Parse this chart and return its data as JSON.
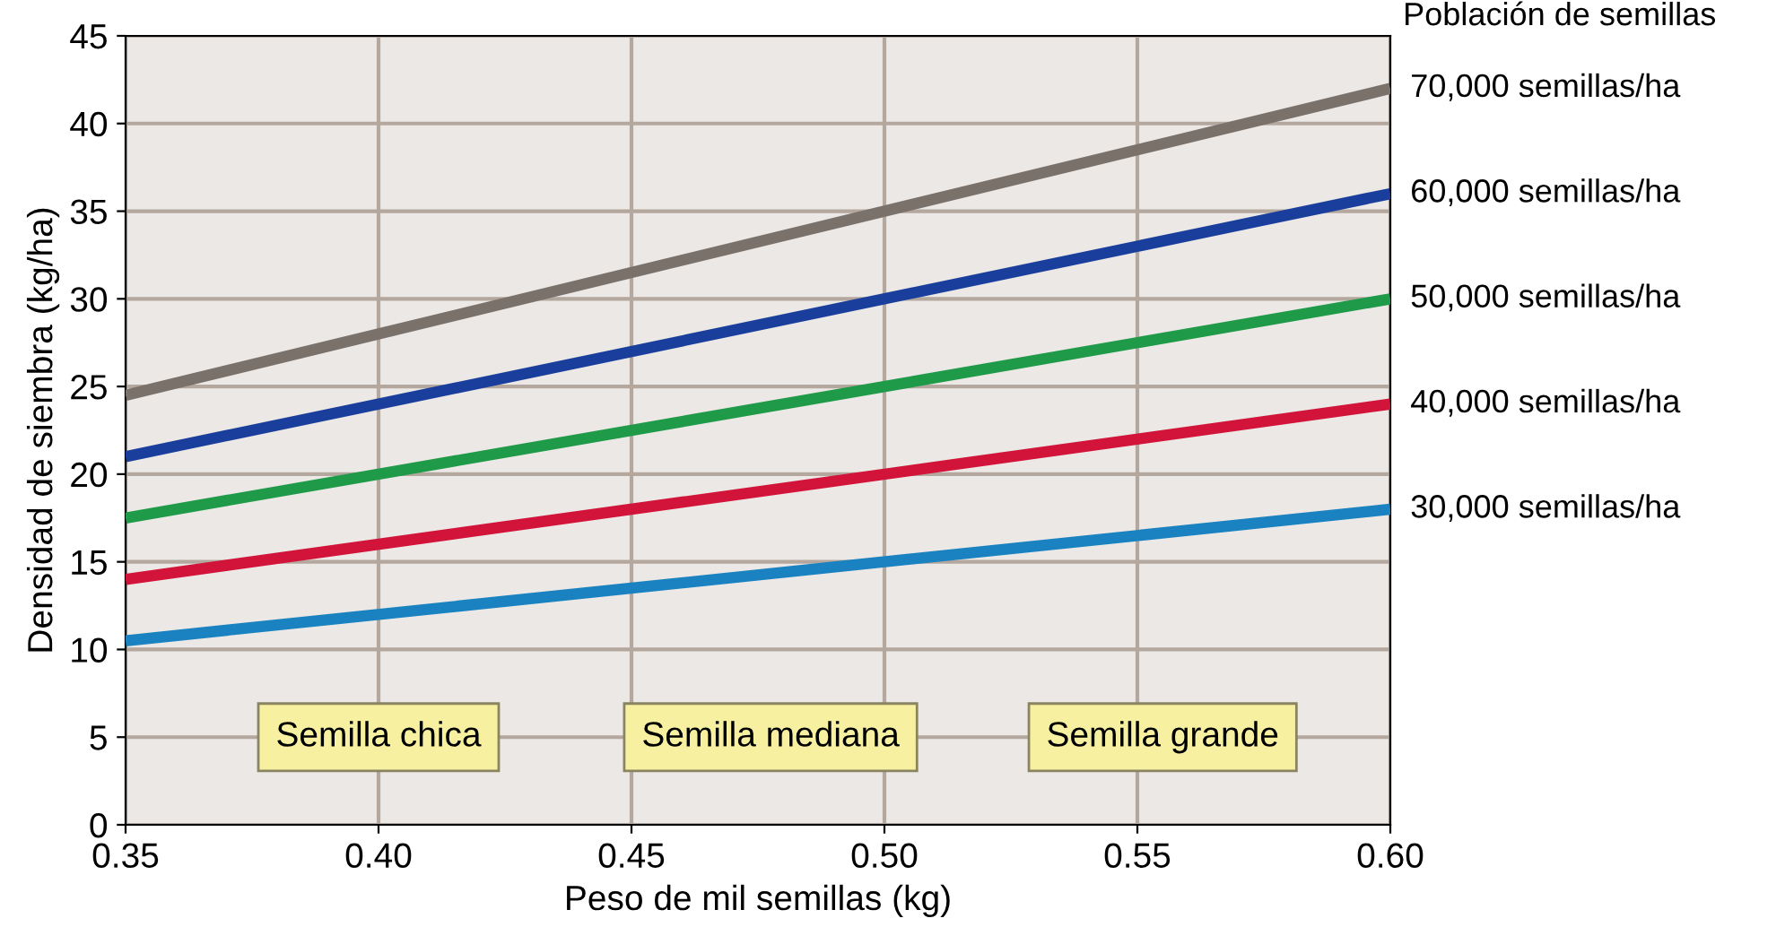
{
  "chart_data": {
    "type": "line",
    "xlabel": "Peso de mil semillas (kg)",
    "ylabel": "Densidad de siembra (kg/ha)",
    "legend_title": "Población de semillas",
    "x": [
      0.35,
      0.6
    ],
    "series": [
      {
        "name": "70,000 semillas/ha",
        "color": "#7a716b",
        "values": [
          24.5,
          42
        ]
      },
      {
        "name": "60,000 semillas/ha",
        "color": "#1a3e9c",
        "values": [
          21,
          36
        ]
      },
      {
        "name": "50,000 semillas/ha",
        "color": "#1f9a48",
        "values": [
          17.5,
          30
        ]
      },
      {
        "name": "40,000 semillas/ha",
        "color": "#d2143a",
        "values": [
          14,
          24
        ]
      },
      {
        "name": "30,000 semillas/ha",
        "color": "#1a82c0",
        "values": [
          10.5,
          18
        ]
      }
    ],
    "xlim": [
      0.35,
      0.6
    ],
    "xticks": [
      0.35,
      {
        "value": 0.4,
        "label": "0.40"
      },
      0.45,
      {
        "value": 0.5,
        "label": "0.50"
      },
      0.55,
      {
        "value": 0.6,
        "label": "0.60"
      }
    ],
    "ylim": [
      0,
      45
    ],
    "yticks": [
      0,
      5,
      10,
      15,
      20,
      25,
      30,
      35,
      40,
      45
    ],
    "grid": true,
    "legend": "right",
    "marker": "none",
    "line_style": "solid",
    "annotations": [
      "Semilla chica",
      "Semilla mediana",
      "Semilla grande"
    ]
  }
}
